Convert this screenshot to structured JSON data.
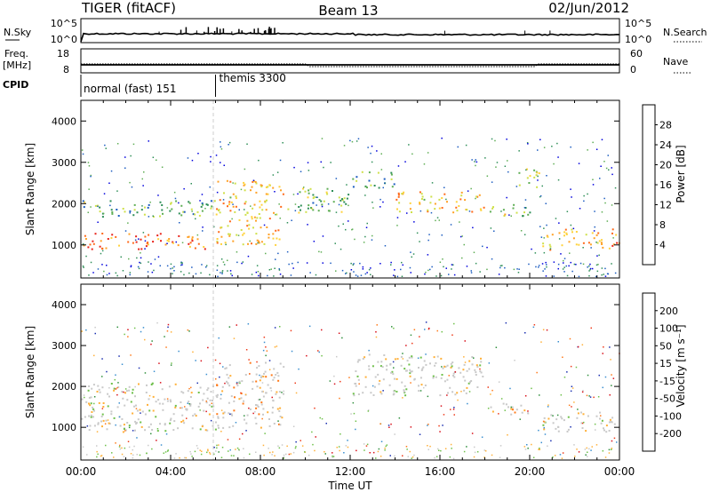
{
  "header": {
    "radar": "TIGER (fitACF)",
    "beam": "Beam 13",
    "date": "02/Jun/2012"
  },
  "strips": {
    "nsky_label": "N.Sky",
    "nsky_ticks": [
      "10^5",
      "10^0"
    ],
    "nsearch_label": "N.Search",
    "nsearch_ticks": [
      "10^5",
      "10^0"
    ],
    "freq_label": "Freq.",
    "freq_unit": "[MHz]",
    "freq_ticks": [
      "18",
      "8"
    ],
    "nave_label": "Nave",
    "nave_ticks": [
      "60",
      "0"
    ],
    "cpid_label": "CPID",
    "cpid_modes": [
      {
        "label": "normal (fast) 151",
        "start_hour": 0,
        "end_hour": 6
      },
      {
        "label": "themis 3300",
        "start_hour": 6,
        "end_hour": 24
      }
    ]
  },
  "power_panel": {
    "ylabel": "Slant Range [km]",
    "yticks": [
      "4000",
      "3000",
      "2000",
      "1000"
    ],
    "colorbar_title": "Power [dB]",
    "colorbar_ticks": [
      "28",
      "24",
      "20",
      "16",
      "12",
      "8",
      "4"
    ],
    "colors": [
      "#0000dd",
      "#1c5cc0",
      "#2f8f58",
      "#5fae55",
      "#cfe04a",
      "#ffd23c",
      "#ffa126",
      "#ff6a1a",
      "#e8231a"
    ]
  },
  "velocity_panel": {
    "ylabel": "Slant Range [km]",
    "yticks": [
      "4000",
      "3000",
      "2000",
      "1000"
    ],
    "colorbar_title": "Velocity [m s⁻¹]",
    "colorbar_ticks": [
      "200",
      "100",
      "50",
      "15",
      "-15",
      "-50",
      "-100",
      "-200"
    ],
    "colors": [
      "#1a2fb0",
      "#3a8fd0",
      "#2f8f3c",
      "#6ec04a",
      "#c9c9c9",
      "#ffb038",
      "#ff7a1a",
      "#ee3a1a",
      "#d8101a"
    ]
  },
  "xaxis": {
    "ticks": [
      "00:00",
      "04:00",
      "08:00",
      "12:00",
      "16:00",
      "20:00",
      "00:00"
    ],
    "label": "Time UT"
  },
  "chart_data": {
    "type": "heatmap",
    "title": "TIGER (fitACF) Beam 13 02/Jun/2012",
    "xlabel": "Time UT",
    "ylabel": "Slant Range [km]",
    "xlim": [
      0,
      24
    ],
    "ylim": [
      200,
      4500
    ],
    "series": [
      {
        "name": "Power [dB]",
        "zlim": [
          0,
          30
        ],
        "backscatter_bands": [
          {
            "hours": [
              0,
              6
            ],
            "range_km": [
              900,
              1300
            ],
            "level_db": 26
          },
          {
            "hours": [
              0,
              6
            ],
            "range_km": [
              1700,
              2100
            ],
            "level_db": 10
          },
          {
            "hours": [
              6,
              9
            ],
            "range_km": [
              1000,
              2600
            ],
            "level_db": 20
          },
          {
            "hours": [
              9,
              12
            ],
            "range_km": [
              1800,
              2400
            ],
            "level_db": 12
          },
          {
            "hours": [
              12,
              14
            ],
            "range_km": [
              2400,
              2800
            ],
            "level_db": 10
          },
          {
            "hours": [
              14,
              18
            ],
            "range_km": [
              1800,
              2300
            ],
            "level_db": 20
          },
          {
            "hours": [
              18,
              20
            ],
            "range_km": [
              1700,
              2000
            ],
            "level_db": 14
          },
          {
            "hours": [
              19.5,
              20.5
            ],
            "range_km": [
              2400,
              2900
            ],
            "level_db": 14
          },
          {
            "hours": [
              20.5,
              24
            ],
            "range_km": [
              900,
              1400
            ],
            "level_db": 22
          }
        ]
      },
      {
        "name": "Velocity [m s⁻¹]",
        "zlim": [
          -200,
          200
        ],
        "backscatter_bands": [
          {
            "hours": [
              0,
              6
            ],
            "range_km": [
              900,
              2100
            ],
            "velocity_ms": 0
          },
          {
            "hours": [
              6,
              9
            ],
            "range_km": [
              1000,
              2600
            ],
            "velocity_ms": -60
          },
          {
            "hours": [
              12,
              18
            ],
            "range_km": [
              1800,
              2800
            ],
            "velocity_ms": 0
          },
          {
            "hours": [
              18,
              20
            ],
            "range_km": [
              1300,
              1600
            ],
            "velocity_ms": -80
          },
          {
            "hours": [
              20.5,
              24
            ],
            "range_km": [
              900,
              1400
            ],
            "velocity_ms": 0
          }
        ]
      }
    ],
    "frequency_mhz": 10,
    "grid": false
  }
}
